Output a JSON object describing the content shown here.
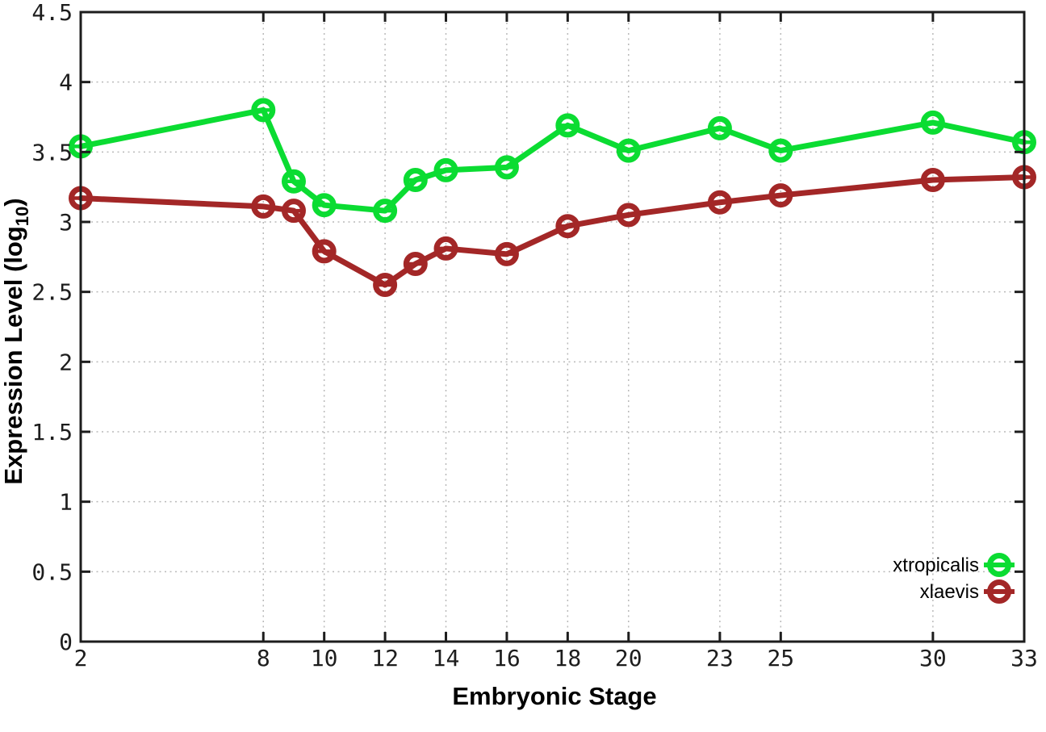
{
  "chart_data": {
    "type": "line",
    "title": "",
    "xlabel": "Embryonic Stage",
    "ylabel": "Expression Level (log10)",
    "ylabel_parts": {
      "prefix": "Expression Level (log",
      "sub": "10",
      "suffix": ")"
    },
    "xlim": [
      2,
      33
    ],
    "ylim": [
      0,
      4.5
    ],
    "x_ticks": [
      2,
      8,
      10,
      12,
      14,
      16,
      18,
      20,
      23,
      25,
      30,
      33
    ],
    "y_ticks": [
      0,
      0.5,
      1,
      1.5,
      2,
      2.5,
      3,
      3.5,
      4,
      4.5
    ],
    "grid": true,
    "grid_style": "dotted",
    "legend_position": "inside-bottom-right",
    "marker": "open-circle-with-errorbar-cap",
    "x": [
      2,
      8,
      9,
      10,
      12,
      13,
      14,
      16,
      18,
      20,
      23,
      25,
      30,
      33
    ],
    "series": [
      {
        "name": "xtropicalis",
        "color": "#0bdc32",
        "values": [
          3.54,
          3.8,
          3.29,
          3.12,
          3.08,
          3.3,
          3.37,
          3.39,
          3.69,
          3.51,
          3.67,
          3.51,
          3.71,
          3.57
        ]
      },
      {
        "name": "xlaevis",
        "color": "#a32727",
        "values": [
          3.17,
          3.11,
          3.08,
          2.79,
          2.55,
          2.7,
          2.81,
          2.77,
          2.97,
          3.05,
          3.14,
          3.19,
          3.3,
          3.32
        ]
      }
    ],
    "colors": {
      "border": "#1d1d1d",
      "grid": "#b9b9b9",
      "background": "#ffffff",
      "tick_text": "#1d1d1d"
    }
  }
}
